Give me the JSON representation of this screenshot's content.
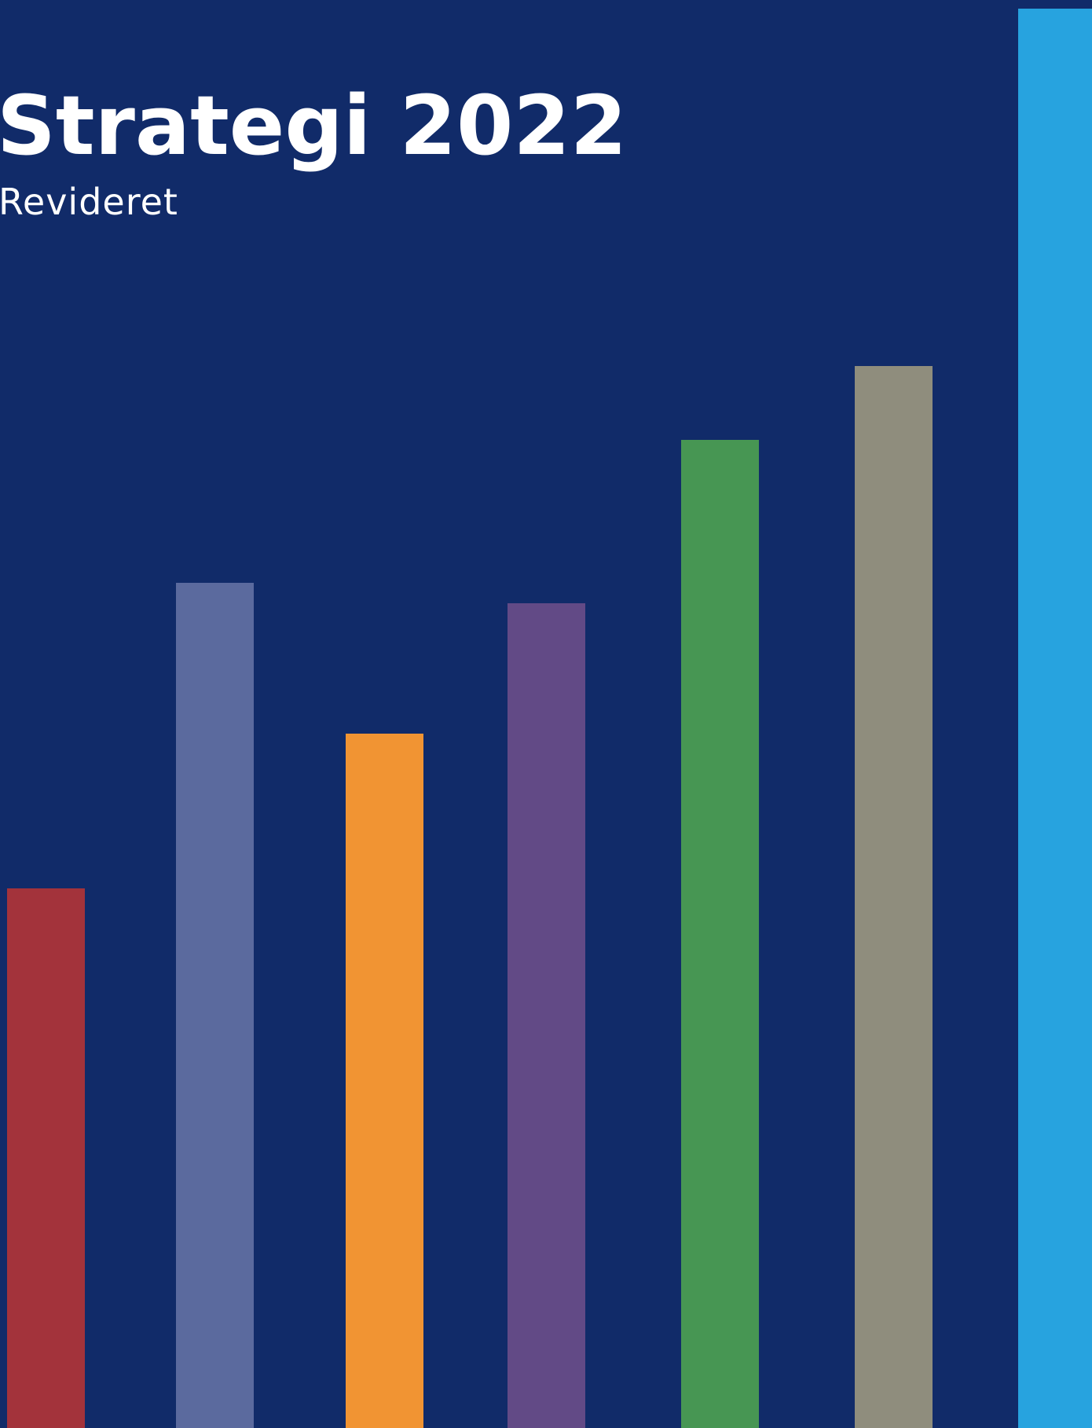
{
  "cover": {
    "title": "Strategi 2022",
    "subtitle": "Revideret"
  },
  "colors": {
    "background": "#112b69",
    "text": "#ffffff",
    "bars": [
      "#a3333b",
      "#5b6a9e",
      "#f19433",
      "#624a86",
      "#479653",
      "#8f8d7d",
      "#27a3df"
    ]
  }
}
